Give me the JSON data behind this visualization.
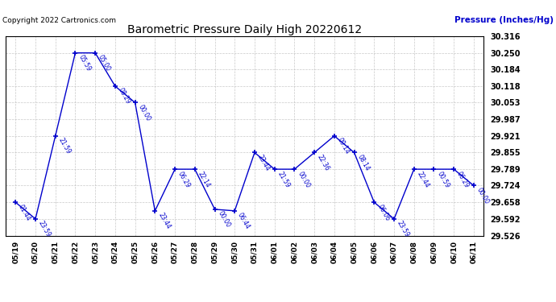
{
  "title": "Barometric Pressure Daily High 20220612",
  "ylabel": "Pressure (Inches/Hg)",
  "copyright": "Copyright 2022 Cartronics.com",
  "background_color": "#ffffff",
  "line_color": "#0000cc",
  "grid_color": "#bbbbbb",
  "text_color_title": "#000000",
  "text_color_label": "#0000cc",
  "xlabels": [
    "05/19",
    "05/20",
    "05/21",
    "05/22",
    "05/23",
    "05/24",
    "05/25",
    "05/26",
    "05/27",
    "05/28",
    "05/29",
    "05/30",
    "05/31",
    "06/01",
    "06/02",
    "06/03",
    "06/04",
    "06/05",
    "06/06",
    "06/07",
    "06/08",
    "06/09",
    "06/10",
    "06/11"
  ],
  "y_values": [
    29.658,
    29.592,
    29.921,
    30.25,
    30.25,
    30.118,
    30.053,
    29.624,
    29.789,
    29.789,
    29.63,
    29.624,
    29.855,
    29.789,
    29.789,
    29.855,
    29.921,
    29.855,
    29.658,
    29.592,
    29.789,
    29.789,
    29.789,
    29.724
  ],
  "time_labels": [
    "01:44",
    "23:59",
    "21:59",
    "05:59",
    "05:00",
    "08:29",
    "00:00",
    "23:44",
    "06:29",
    "22:14",
    "00:00",
    "06:44",
    "23:44",
    "21:59",
    "00:00",
    "22:36",
    "09:14",
    "08:14",
    "06:06",
    "23:59",
    "22:44",
    "00:59",
    "06:29",
    "00:00"
  ],
  "ylim_min": 29.526,
  "ylim_max": 30.316,
  "yticks": [
    29.526,
    29.592,
    29.658,
    29.724,
    29.789,
    29.855,
    29.921,
    29.987,
    30.053,
    30.118,
    30.184,
    30.25,
    30.316
  ],
  "figwidth": 6.9,
  "figheight": 3.75,
  "dpi": 100
}
